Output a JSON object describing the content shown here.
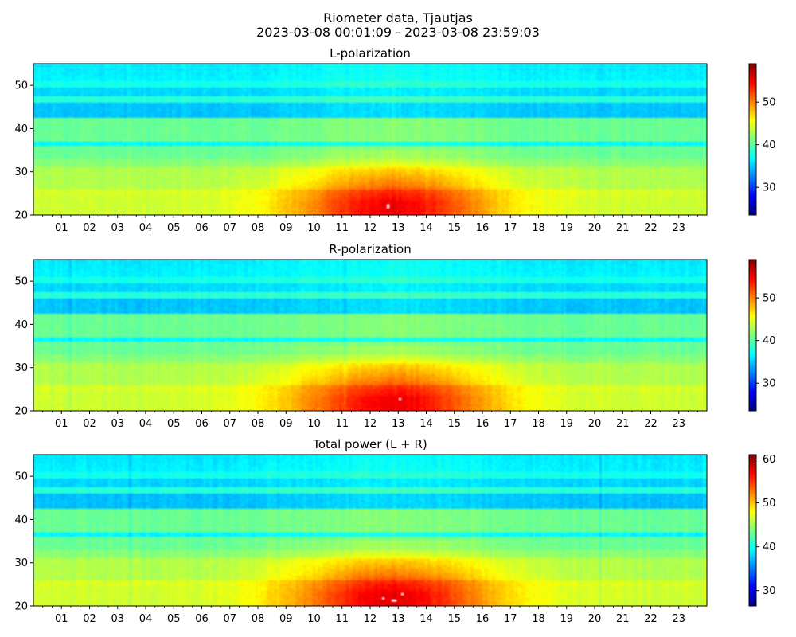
{
  "figure": {
    "title_line1": "Riometer data, Tjautjas",
    "title_line2": "2023-03-08 00:01:09 - 2023-03-08 23:59:03"
  },
  "colormap": [
    "#00007f",
    "#0000ff",
    "#007fff",
    "#00ffff",
    "#7fff7f",
    "#ffff00",
    "#ff7f00",
    "#ff0000",
    "#7f0000"
  ],
  "chart_data": [
    {
      "type": "heatmap",
      "title": "L-polarization",
      "xlabel": "",
      "ylabel": "",
      "x_range_hours": [
        0,
        24
      ],
      "x_tick_labels": [
        "01",
        "02",
        "03",
        "04",
        "05",
        "06",
        "07",
        "08",
        "09",
        "10",
        "11",
        "12",
        "13",
        "14",
        "15",
        "16",
        "17",
        "18",
        "19",
        "20",
        "21",
        "22",
        "23"
      ],
      "ylim": [
        20,
        55
      ],
      "y_ticks": [
        20,
        30,
        40,
        50
      ],
      "colorbar": {
        "range": [
          23.5,
          59
        ],
        "ticks": [
          30,
          40,
          50
        ]
      },
      "saturated_white": true,
      "description_values": {
        "background_level": 40,
        "quiet_band_levels": [
          36,
          38,
          41,
          43,
          46
        ]
      }
    },
    {
      "type": "heatmap",
      "title": "R-polarization",
      "xlabel": "",
      "ylabel": "",
      "x_range_hours": [
        0,
        24
      ],
      "x_tick_labels": [
        "01",
        "02",
        "03",
        "04",
        "05",
        "06",
        "07",
        "08",
        "09",
        "10",
        "11",
        "12",
        "13",
        "14",
        "15",
        "16",
        "17",
        "18",
        "19",
        "20",
        "21",
        "22",
        "23"
      ],
      "ylim": [
        20,
        55
      ],
      "y_ticks": [
        20,
        30,
        40,
        50
      ],
      "colorbar": {
        "range": [
          23.5,
          59
        ],
        "ticks": [
          30,
          40,
          50
        ]
      },
      "saturated_white": true,
      "description_values": {
        "background_level": 40,
        "quiet_band_levels": [
          36,
          38,
          41,
          43,
          46
        ]
      }
    },
    {
      "type": "heatmap",
      "title": "Total power (L + R)",
      "xlabel": "",
      "ylabel": "",
      "x_range_hours": [
        0,
        24
      ],
      "x_tick_labels": [
        "01",
        "02",
        "03",
        "04",
        "05",
        "06",
        "07",
        "08",
        "09",
        "10",
        "11",
        "12",
        "13",
        "14",
        "15",
        "16",
        "17",
        "18",
        "19",
        "20",
        "21",
        "22",
        "23"
      ],
      "ylim": [
        20,
        55
      ],
      "y_ticks": [
        20,
        30,
        40,
        50
      ],
      "colorbar": {
        "range": [
          26.5,
          61
        ],
        "ticks": [
          30,
          40,
          50,
          60
        ]
      },
      "saturated_white": true,
      "description_values": {
        "background_level": 40,
        "quiet_band_levels": [
          36,
          38,
          41,
          43,
          46
        ]
      }
    }
  ]
}
